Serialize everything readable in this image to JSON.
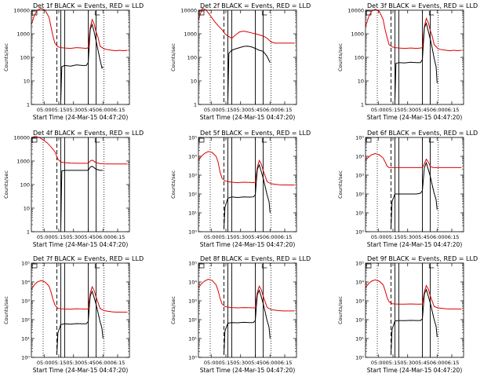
{
  "page": {
    "background": "#ffffff"
  },
  "style": {
    "events_color": "#000000",
    "lld_color": "#dd0000",
    "axis_color": "#000000"
  },
  "common": {
    "xlabel": "Start Time (24-Mar-15 04:47:20)",
    "ylabel": "Counts/sec",
    "x_ticks": [
      "05:00",
      "05:15",
      "05:30",
      "05:45",
      "06:00",
      "06:15"
    ],
    "x_tick_minutes": [
      13,
      28,
      43,
      58,
      73,
      88
    ],
    "xlim_minutes": [
      0,
      100
    ],
    "markers_minutes": {
      "dotted": [
        12,
        74
      ],
      "dashed": [
        26
      ],
      "solid": [
        30,
        34,
        58,
        66
      ]
    },
    "corner_mark_right_minutes": 65
  },
  "chart_data": [
    {
      "type": "line",
      "title": "Det 1f BLACK = Events, RED = LLD",
      "yscale": "log",
      "ylim": [
        1,
        10000
      ],
      "y_ticks": [
        "1",
        "10",
        "100",
        "1000",
        "10000"
      ],
      "series": [
        {
          "name": "LLD",
          "x": [
            0,
            3,
            6,
            10,
            14,
            18,
            20,
            22,
            24,
            27,
            30,
            34,
            40,
            46,
            52,
            56,
            58,
            60,
            62,
            64,
            66,
            68,
            70,
            74,
            78,
            82,
            86,
            90,
            94,
            98
          ],
          "y": [
            2500,
            6000,
            10000,
            12000,
            10000,
            5000,
            2000,
            800,
            400,
            280,
            260,
            250,
            240,
            260,
            250,
            240,
            260,
            1800,
            4000,
            2600,
            1200,
            700,
            300,
            230,
            210,
            200,
            190,
            200,
            190,
            200
          ]
        },
        {
          "name": "Events",
          "x": [
            30,
            31,
            34,
            40,
            46,
            52,
            56,
            58,
            60,
            62,
            64,
            66,
            68,
            70,
            72,
            73
          ],
          "y": [
            1.5,
            40,
            45,
            42,
            48,
            45,
            45,
            60,
            1500,
            2500,
            1200,
            500,
            200,
            80,
            35,
            40
          ]
        }
      ]
    },
    {
      "type": "line",
      "title": "Det 2f BLACK = Events, RED = LLD",
      "yscale": "log",
      "ylim": [
        1,
        10000
      ],
      "y_ticks": [
        "1",
        "10",
        "100",
        "1000",
        "10000"
      ],
      "series": [
        {
          "name": "LLD",
          "x": [
            0,
            4,
            8,
            12,
            16,
            20,
            24,
            27,
            30,
            34,
            38,
            42,
            46,
            50,
            54,
            58,
            62,
            66,
            70,
            74,
            78,
            82,
            86,
            90,
            94,
            98
          ],
          "y": [
            4000,
            12000,
            10000,
            6000,
            3500,
            2200,
            1500,
            1000,
            800,
            650,
            900,
            1200,
            1300,
            1200,
            1100,
            1000,
            900,
            800,
            650,
            450,
            400,
            400,
            400,
            400,
            400,
            400
          ]
        },
        {
          "name": "Events",
          "x": [
            30,
            31,
            34,
            38,
            42,
            46,
            50,
            54,
            58,
            62,
            66,
            70,
            73
          ],
          "y": [
            1.5,
            150,
            200,
            230,
            260,
            290,
            300,
            280,
            240,
            200,
            180,
            110,
            60
          ]
        }
      ]
    },
    {
      "type": "line",
      "title": "Det 3f BLACK = Events, RED = LLD",
      "yscale": "log",
      "ylim": [
        1,
        10000
      ],
      "y_ticks": [
        "1",
        "10",
        "100",
        "1000",
        "10000"
      ],
      "series": [
        {
          "name": "LLD",
          "x": [
            0,
            3,
            6,
            10,
            14,
            18,
            20,
            22,
            24,
            27,
            30,
            34,
            40,
            46,
            52,
            56,
            58,
            60,
            62,
            64,
            66,
            68,
            70,
            74,
            78,
            82,
            86,
            90,
            94,
            98
          ],
          "y": [
            2000,
            5000,
            9000,
            11000,
            9000,
            4000,
            1500,
            700,
            350,
            280,
            260,
            250,
            240,
            250,
            240,
            250,
            260,
            2000,
            4500,
            3000,
            1400,
            800,
            350,
            230,
            210,
            200,
            190,
            200,
            190,
            200
          ]
        },
        {
          "name": "Events",
          "x": [
            30,
            31,
            34,
            40,
            46,
            52,
            56,
            58,
            60,
            62,
            64,
            66,
            68,
            70,
            72,
            73
          ],
          "y": [
            1.5,
            55,
            60,
            58,
            62,
            60,
            60,
            80,
            1800,
            2800,
            1300,
            600,
            250,
            90,
            40,
            8
          ]
        }
      ]
    },
    {
      "type": "line",
      "title": "Det 4f BLACK = Events, RED = LLD",
      "yscale": "log",
      "ylim": [
        1,
        10000
      ],
      "y_ticks": [
        "1",
        "10",
        "100",
        "1000",
        "10000"
      ],
      "series": [
        {
          "name": "LLD",
          "x": [
            0,
            4,
            8,
            12,
            16,
            20,
            24,
            27,
            30,
            34,
            40,
            46,
            52,
            56,
            58,
            60,
            62,
            66,
            70,
            74,
            78,
            82,
            86,
            90,
            94,
            98
          ],
          "y": [
            10000,
            11000,
            10000,
            8000,
            6000,
            4000,
            2500,
            1200,
            900,
            850,
            820,
            800,
            800,
            800,
            800,
            1000,
            1100,
            850,
            780,
            760,
            750,
            750,
            750,
            750,
            750,
            750
          ]
        },
        {
          "name": "Events",
          "x": [
            30,
            31,
            34,
            40,
            46,
            52,
            56,
            58,
            60,
            62,
            66,
            70,
            73
          ],
          "y": [
            1.5,
            380,
            400,
            400,
            400,
            400,
            400,
            400,
            550,
            600,
            450,
            400,
            400
          ]
        }
      ]
    },
    {
      "type": "line",
      "title": "Det 5f BLACK = Events, RED = LLD",
      "yscale": "log",
      "ylim": [
        1,
        100000
      ],
      "y_ticks": [
        "10⁰",
        "10¹",
        "10²",
        "10³",
        "10⁴",
        "10⁵"
      ],
      "series": [
        {
          "name": "LLD",
          "x": [
            0,
            3,
            6,
            10,
            14,
            18,
            20,
            22,
            24,
            27,
            30,
            34,
            40,
            46,
            52,
            56,
            58,
            60,
            62,
            64,
            66,
            68,
            70,
            74,
            78,
            82,
            86,
            90,
            94,
            98
          ],
          "y": [
            6000,
            10000,
            14000,
            18000,
            16000,
            10000,
            5000,
            1500,
            700,
            500,
            450,
            420,
            400,
            420,
            410,
            400,
            420,
            2500,
            6000,
            4000,
            1800,
            900,
            450,
            350,
            330,
            310,
            300,
            300,
            300,
            300
          ]
        },
        {
          "name": "Events",
          "x": [
            26,
            27,
            30,
            34,
            40,
            46,
            52,
            56,
            58,
            60,
            62,
            64,
            66,
            68,
            70,
            72,
            73
          ],
          "y": [
            1.5,
            20,
            60,
            70,
            65,
            70,
            68,
            70,
            90,
            2000,
            3500,
            1600,
            700,
            250,
            90,
            40,
            10
          ]
        }
      ]
    },
    {
      "type": "line",
      "title": "Det 6f BLACK = Events, RED = LLD",
      "yscale": "log",
      "ylim": [
        1,
        100000
      ],
      "y_ticks": [
        "10⁰",
        "10¹",
        "10²",
        "10³",
        "10⁴",
        "10⁵"
      ],
      "series": [
        {
          "name": "LLD",
          "x": [
            0,
            3,
            6,
            10,
            14,
            18,
            20,
            22,
            24,
            26,
            30,
            40,
            50,
            58,
            60,
            62,
            64,
            66,
            68,
            70,
            74,
            80,
            90,
            98
          ],
          "y": [
            6000,
            9000,
            12000,
            14000,
            12000,
            8000,
            5000,
            3000,
            2500,
            2500,
            2500,
            2500,
            2500,
            2500,
            4000,
            7000,
            5000,
            3000,
            2600,
            2500,
            2500,
            2500,
            2500,
            2500
          ]
        },
        {
          "name": "Events",
          "x": [
            26,
            27,
            30,
            34,
            40,
            46,
            52,
            56,
            58,
            60,
            62,
            64,
            66,
            68,
            70,
            72,
            73
          ],
          "y": [
            1.5,
            40,
            100,
            100,
            100,
            100,
            100,
            110,
            150,
            2500,
            4500,
            2000,
            900,
            300,
            110,
            50,
            15
          ]
        }
      ]
    },
    {
      "type": "line",
      "title": "Det 7f BLACK = Events, RED = LLD",
      "yscale": "log",
      "ylim": [
        1,
        100000
      ],
      "y_ticks": [
        "10⁰",
        "10¹",
        "10²",
        "10³",
        "10⁴",
        "10⁵"
      ],
      "series": [
        {
          "name": "LLD",
          "x": [
            0,
            3,
            6,
            10,
            14,
            18,
            20,
            22,
            24,
            27,
            30,
            34,
            40,
            46,
            52,
            56,
            58,
            60,
            62,
            64,
            66,
            68,
            70,
            74,
            78,
            82,
            86,
            90,
            94,
            98
          ],
          "y": [
            4000,
            7000,
            10000,
            12000,
            10000,
            6000,
            3000,
            1200,
            600,
            400,
            380,
            370,
            360,
            380,
            370,
            360,
            380,
            2500,
            5500,
            3500,
            1600,
            800,
            400,
            300,
            280,
            260,
            250,
            250,
            250,
            250
          ]
        },
        {
          "name": "Events",
          "x": [
            26,
            27,
            30,
            34,
            40,
            46,
            52,
            56,
            58,
            60,
            62,
            64,
            66,
            68,
            70,
            72,
            73
          ],
          "y": [
            1.5,
            20,
            55,
            60,
            58,
            62,
            60,
            60,
            80,
            1800,
            3200,
            1500,
            650,
            230,
            80,
            35,
            10
          ]
        }
      ]
    },
    {
      "type": "line",
      "title": "Det 8f BLACK = Events, RED = LLD",
      "yscale": "log",
      "ylim": [
        1,
        100000
      ],
      "y_ticks": [
        "10⁰",
        "10¹",
        "10²",
        "10³",
        "10⁴",
        "10⁵"
      ],
      "series": [
        {
          "name": "LLD",
          "x": [
            0,
            3,
            6,
            10,
            14,
            18,
            20,
            22,
            24,
            27,
            30,
            34,
            40,
            46,
            52,
            56,
            58,
            60,
            62,
            64,
            66,
            68,
            70,
            74,
            78,
            82,
            86,
            90,
            94,
            98
          ],
          "y": [
            5000,
            8000,
            11000,
            14000,
            12000,
            7000,
            3500,
            1400,
            700,
            500,
            460,
            440,
            420,
            440,
            430,
            420,
            440,
            2800,
            6000,
            4000,
            1800,
            900,
            450,
            340,
            320,
            300,
            290,
            290,
            290,
            290
          ]
        },
        {
          "name": "Events",
          "x": [
            26,
            27,
            30,
            34,
            40,
            46,
            52,
            56,
            58,
            60,
            62,
            64,
            66,
            68,
            70,
            72,
            73
          ],
          "y": [
            1.5,
            25,
            65,
            70,
            68,
            72,
            70,
            70,
            90,
            2100,
            3600,
            1700,
            720,
            260,
            90,
            40,
            10
          ]
        }
      ]
    },
    {
      "type": "line",
      "title": "Det 9f BLACK = Events, RED = LLD",
      "yscale": "log",
      "ylim": [
        1,
        100000
      ],
      "y_ticks": [
        "10⁰",
        "10¹",
        "10²",
        "10³",
        "10⁴",
        "10⁵"
      ],
      "series": [
        {
          "name": "LLD",
          "x": [
            0,
            3,
            6,
            10,
            14,
            18,
            20,
            22,
            24,
            27,
            30,
            34,
            40,
            46,
            52,
            56,
            58,
            60,
            62,
            64,
            66,
            68,
            70,
            74,
            78,
            82,
            86,
            90,
            94,
            98
          ],
          "y": [
            5000,
            8000,
            11000,
            13000,
            11000,
            7000,
            3500,
            1500,
            900,
            700,
            680,
            670,
            660,
            680,
            670,
            660,
            680,
            3000,
            6500,
            4200,
            1900,
            950,
            500,
            420,
            400,
            380,
            370,
            370,
            370,
            370
          ]
        },
        {
          "name": "Events",
          "x": [
            26,
            27,
            30,
            34,
            40,
            46,
            52,
            56,
            58,
            60,
            62,
            64,
            66,
            68,
            70,
            72,
            73
          ],
          "y": [
            1.5,
            30,
            85,
            90,
            88,
            92,
            90,
            90,
            110,
            2300,
            4000,
            1800,
            780,
            280,
            100,
            45,
            12
          ]
        }
      ]
    }
  ]
}
